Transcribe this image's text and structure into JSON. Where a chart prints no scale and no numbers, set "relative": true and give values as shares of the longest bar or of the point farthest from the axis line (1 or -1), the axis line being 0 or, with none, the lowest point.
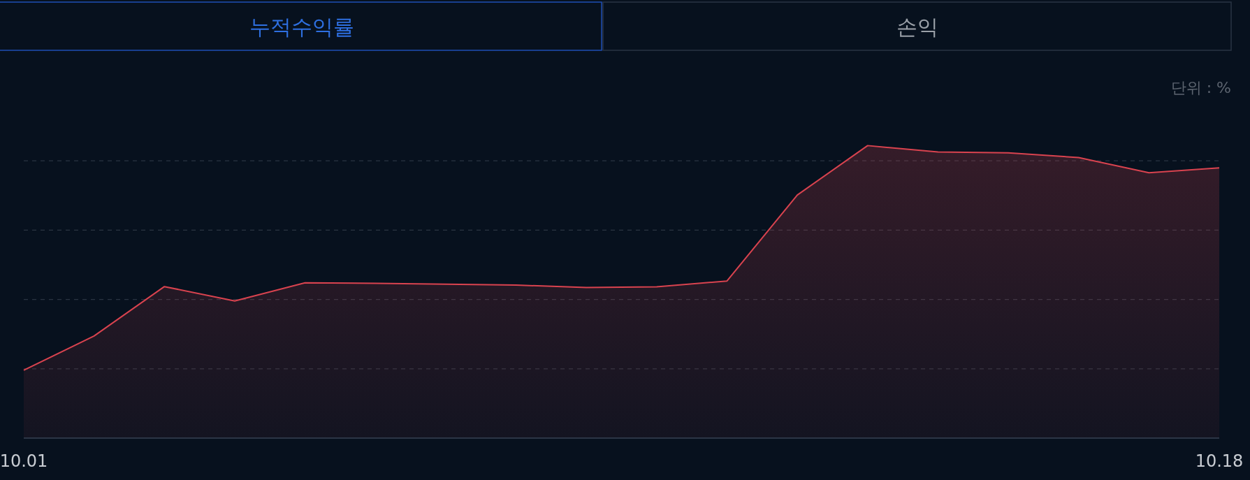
{
  "chart_data": {
    "type": "area",
    "relative": true,
    "grid": "y",
    "ylabel": "단위 : %",
    "annotations": [
      "누적수익률",
      "손익"
    ],
    "categories": [
      "10.01",
      null,
      null,
      null,
      null,
      null,
      null,
      null,
      null,
      null,
      null,
      null,
      null,
      null,
      null,
      null,
      null,
      "10.18"
    ],
    "series": [
      {
        "color": "#d9434f",
        "values": [
          0.232,
          0.349,
          0.518,
          0.469,
          0.531,
          0.529,
          0.526,
          0.523,
          0.515,
          0.517,
          0.537,
          0.831,
          1,
          0.978,
          0.975,
          0.959,
          0.907,
          0.924
        ]
      }
    ]
  }
}
